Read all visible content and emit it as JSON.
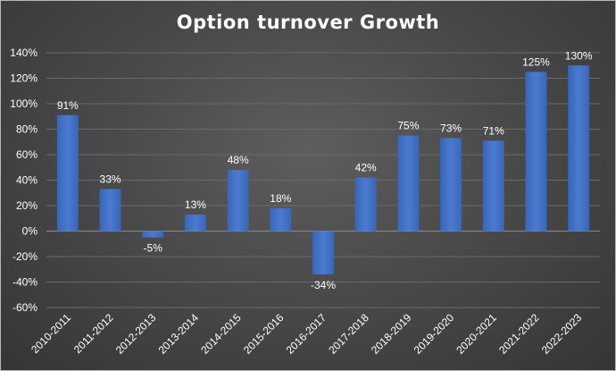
{
  "chart_data": {
    "type": "bar",
    "title": "Option turnover Growth",
    "xlabel": "",
    "ylabel": "",
    "categories": [
      "2010-2011",
      "2011-2012",
      "2012-2013",
      "2013-2014",
      "2014-2015",
      "2015-2016",
      "2016-2017",
      "2017-2018",
      "2018-2019",
      "2019-2020",
      "2020-2021",
      "2021-2022",
      "2022-2023"
    ],
    "values": [
      91,
      33,
      -5,
      13,
      48,
      18,
      -34,
      42,
      75,
      73,
      71,
      125,
      130
    ],
    "data_labels": [
      "91%",
      "33%",
      "-5%",
      "13%",
      "48%",
      "18%",
      "-34%",
      "42%",
      "75%",
      "73%",
      "71%",
      "125%",
      "130%"
    ],
    "ylim": [
      -60,
      140
    ],
    "yticks": [
      140,
      120,
      100,
      80,
      60,
      40,
      20,
      0,
      -20,
      -40,
      -60
    ],
    "ytick_labels": [
      "140%",
      "120%",
      "100%",
      "80%",
      "60%",
      "40%",
      "20%",
      "0%",
      "-20%",
      "-40%",
      "-60%"
    ],
    "grid": true,
    "legend": "none",
    "colors": {
      "bar": "#4472c4",
      "bar_light": "#5b8ad8",
      "background": "#454545",
      "gridline": "#6a6a6a",
      "text": "#ffffff"
    }
  }
}
